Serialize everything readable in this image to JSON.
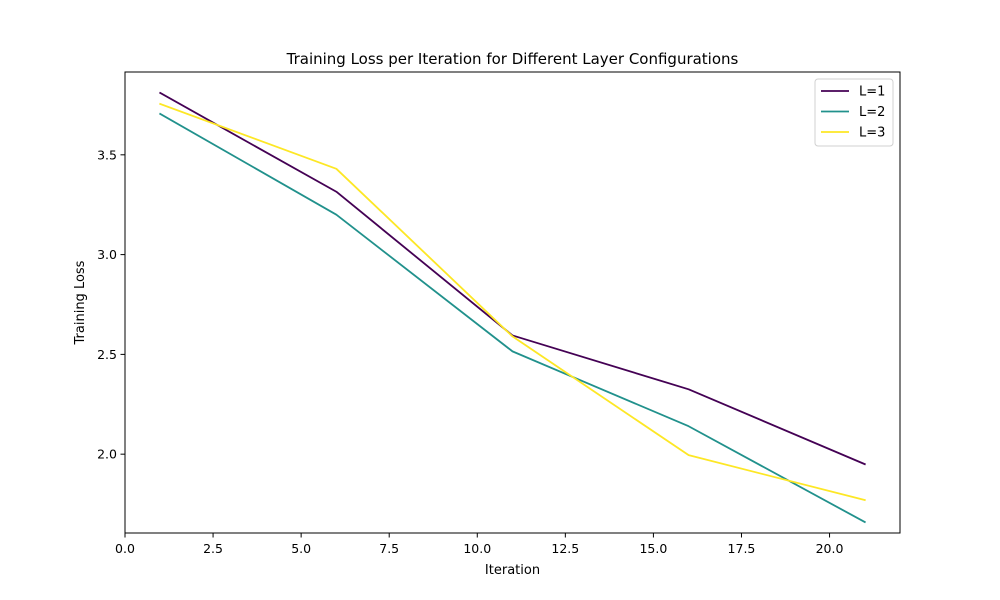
{
  "chart_data": {
    "type": "line",
    "title": "Training Loss per Iteration for Different Layer Configurations",
    "xlabel": "Iteration",
    "ylabel": "Training Loss",
    "xlim": [
      0,
      22.0
    ],
    "ylim": [
      1.605,
      3.915
    ],
    "x_ticks": [
      0,
      2.5,
      5,
      7.5,
      10,
      12.5,
      15,
      17.5,
      20
    ],
    "x_tick_labels": [
      "0.0",
      "2.5",
      "5.0",
      "7.5",
      "10.0",
      "12.5",
      "15.0",
      "17.5",
      "20.0"
    ],
    "y_ticks": [
      2.0,
      2.5,
      3.0,
      3.5
    ],
    "y_tick_labels": [
      "2.0",
      "2.5",
      "3.0",
      "3.5"
    ],
    "grid": false,
    "legend_position": "top-right",
    "x": [
      1,
      6,
      11,
      16,
      21
    ],
    "series": [
      {
        "name": "L=1",
        "color": "#440154",
        "values": [
          3.81,
          3.315,
          2.595,
          2.325,
          1.95
        ]
      },
      {
        "name": "L=2",
        "color": "#21918c",
        "values": [
          3.705,
          3.2,
          2.515,
          2.14,
          1.66
        ]
      },
      {
        "name": "L=3",
        "color": "#fde725",
        "values": [
          3.755,
          3.43,
          2.59,
          1.995,
          1.77
        ]
      }
    ]
  }
}
